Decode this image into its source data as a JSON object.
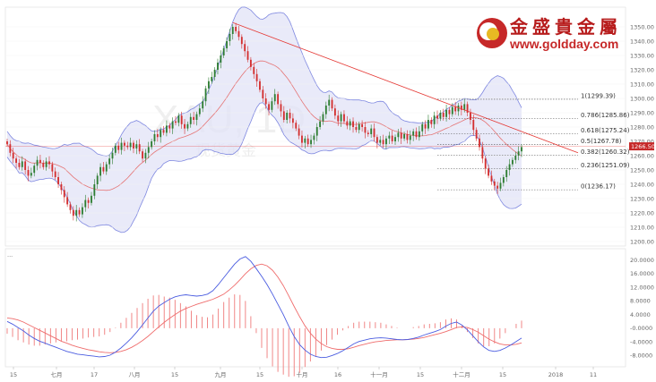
{
  "logo": {
    "chinese": "金盛貴金屬",
    "url": "www.goldday.com"
  },
  "watermark": {
    "symbol": "XAU, 1D",
    "name_cn": "现货黄金"
  },
  "colors": {
    "up": "#2e7d32",
    "down": "#d32f2f",
    "band_fill": "#e1e3f7",
    "band_line": "#7f88e0",
    "ma_line": "#e57373",
    "trend": "#e53935",
    "macd": "#4a5ce0",
    "signal": "#ef6c6c",
    "hist": "#ef7a7a",
    "price_tag": "#c62828"
  },
  "chart_data": {
    "type": "candlestick",
    "title": "",
    "symbol": "XAU, 1D",
    "current_price": "1266.50",
    "price_axis": {
      "ylim": [
        1200,
        1360
      ],
      "ticks": [
        "1350.00",
        "1340.00",
        "1330.00",
        "1320.00",
        "1310.00",
        "1300.00",
        "1290.00",
        "1280.00",
        "1270.00",
        "1260.00",
        "1250.00",
        "1240.00",
        "1230.00",
        "1220.00",
        "1210.00",
        "1200.00"
      ]
    },
    "x_ticks": [
      "15",
      "七月",
      "17",
      "八月",
      "15",
      "九月",
      "15",
      "十月",
      "16",
      "十一月",
      "15",
      "十二月",
      "15",
      "2018",
      "11"
    ],
    "fibonacci": [
      {
        "label": "1(1299.39)",
        "level": 1299.39
      },
      {
        "label": "0.786(1285.86)",
        "level": 1285.86
      },
      {
        "label": "0.618(1275.24)",
        "level": 1275.24
      },
      {
        "label": "0.5(1267.78)",
        "level": 1267.78
      },
      {
        "label": "0.382(1260.32)",
        "level": 1260.32
      },
      {
        "label": "0.236(1251.09)",
        "level": 1251.09
      },
      {
        "label": "0(1236.17)",
        "level": 1236.17
      }
    ],
    "candles_close": [
      1268,
      1262,
      1258,
      1255,
      1252,
      1256,
      1250,
      1246,
      1248,
      1253,
      1257,
      1255,
      1252,
      1256,
      1254,
      1249,
      1245,
      1240,
      1236,
      1231,
      1226,
      1222,
      1218,
      1222,
      1219,
      1224,
      1229,
      1227,
      1232,
      1240,
      1246,
      1252,
      1249,
      1254,
      1258,
      1262,
      1267,
      1264,
      1269,
      1267,
      1266,
      1269,
      1265,
      1268,
      1263,
      1258,
      1262,
      1266,
      1270,
      1275,
      1273,
      1278,
      1276,
      1281,
      1279,
      1284,
      1283,
      1288,
      1282,
      1279,
      1282,
      1287,
      1285,
      1289,
      1293,
      1298,
      1307,
      1312,
      1315,
      1320,
      1325,
      1330,
      1335,
      1340,
      1345,
      1350,
      1347,
      1343,
      1338,
      1333,
      1327,
      1322,
      1317,
      1312,
      1306,
      1300,
      1296,
      1292,
      1298,
      1303,
      1296,
      1291,
      1285,
      1290,
      1286,
      1283,
      1279,
      1274,
      1269,
      1272,
      1268,
      1271,
      1274,
      1280,
      1284,
      1289,
      1295,
      1299,
      1293,
      1288,
      1284,
      1289,
      1284,
      1281,
      1284,
      1280,
      1278,
      1282,
      1280,
      1276,
      1275,
      1279,
      1273,
      1269,
      1271,
      1268,
      1272,
      1274,
      1270,
      1273,
      1276,
      1272,
      1275,
      1271,
      1274,
      1277,
      1273,
      1277,
      1282,
      1279,
      1285,
      1282,
      1288,
      1286,
      1290,
      1287,
      1292,
      1289,
      1294,
      1291,
      1295,
      1292,
      1296,
      1290,
      1285,
      1278,
      1272,
      1266,
      1258,
      1251,
      1246,
      1242,
      1239,
      1237,
      1241,
      1245,
      1250,
      1254,
      1257,
      1260,
      1263,
      1266
    ],
    "indicators": [
      "Bollinger Bands",
      "Moving Average",
      "Fibonacci Retracement",
      "Trend line"
    ],
    "macd": {
      "panel_label": "...",
      "ylim": [
        -10,
        22
      ],
      "ticks": [
        "20.0000",
        "16.0000",
        "12.0000",
        "8.0000",
        "4.0000",
        "-0.0000",
        "-4.0000",
        "-8.0000"
      ],
      "series": [
        {
          "values": [
            2,
            1.2,
            0.2,
            -0.8,
            -2,
            -3,
            -3.8,
            -4.4,
            -5,
            -5.6,
            -6.2,
            -6.8,
            -7.2,
            -7.6,
            -7.8,
            -8,
            -8.2,
            -8.4,
            -8.3,
            -7.9,
            -7,
            -5.8,
            -4.4,
            -2.8,
            -1,
            1,
            3,
            5,
            6.5,
            7.5,
            8.5,
            9.2,
            9.6,
            9.8,
            9.6,
            9.4,
            9.6,
            10,
            11,
            12.8,
            14.8,
            16.8,
            18.8,
            20.3,
            21,
            19.6,
            17.5,
            15.2,
            12.8,
            10,
            7,
            4,
            0.6,
            -2.4,
            -4.8,
            -6.4,
            -7.6,
            -8.3,
            -8.6,
            -8.5,
            -8,
            -7.4,
            -6.6,
            -5.6,
            -4.6,
            -3.9,
            -3.5,
            -3.1,
            -2.9,
            -2.8,
            -2.9,
            -3.1,
            -3.3,
            -3.4,
            -3.3,
            -3,
            -2.6,
            -2,
            -1.5,
            -1,
            -0.4,
            0.6,
            1.4,
            1.8,
            0.9,
            -0.5,
            -2.2,
            -4,
            -5.5,
            -6.5,
            -6.8,
            -6.5,
            -5.8,
            -4.9,
            -3.9,
            -2.9
          ]
        },
        {
          "values": [
            3,
            2.8,
            2.4,
            1.8,
            1,
            0.2,
            -0.6,
            -1.4,
            -2.2,
            -3,
            -3.8,
            -4.4,
            -5,
            -5.5,
            -5.9,
            -6.3,
            -6.6,
            -6.9,
            -7.1,
            -7.2,
            -7.1,
            -6.8,
            -6.3,
            -5.6,
            -4.7,
            -3.6,
            -2.4,
            -1,
            0.4,
            1.7,
            2.9,
            4,
            5,
            5.8,
            6.4,
            7,
            7.5,
            8,
            8.5,
            9.2,
            10,
            11.2,
            12.6,
            14.2,
            16,
            17.4,
            18.4,
            18.8,
            18.3,
            17,
            15,
            12.5,
            9.5,
            6.4,
            3.4,
            0.7,
            -1.5,
            -3.2,
            -4.5,
            -5.4,
            -5.9,
            -6.2,
            -6.2,
            -6,
            -5.6,
            -5.1,
            -4.7,
            -4.3,
            -4,
            -3.8,
            -3.6,
            -3.5,
            -3.4,
            -3.4,
            -3.3,
            -3.2,
            -3,
            -2.7,
            -2.3,
            -1.9,
            -1.5,
            -1,
            -0.4,
            0.2,
            0.4,
            0.2,
            -0.4,
            -1.2,
            -2.2,
            -3.2,
            -4,
            -4.6,
            -4.9,
            -4.9,
            -4.7,
            -4.3
          ]
        }
      ]
    }
  }
}
